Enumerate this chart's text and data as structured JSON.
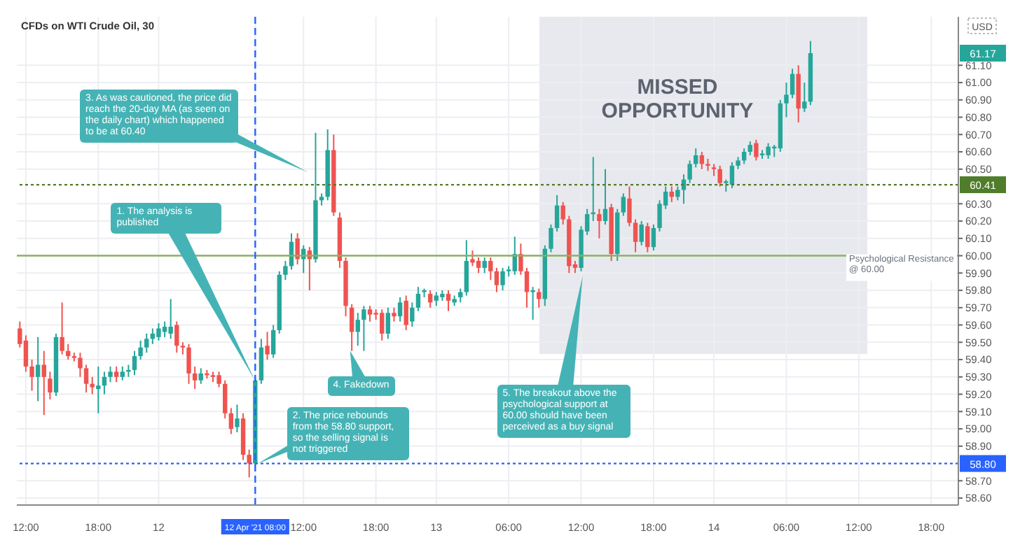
{
  "chart_data": {
    "type": "candlestick",
    "title": "CFDs on WTI Crude Oil, 30",
    "ylabel": "USD",
    "categories": [
      null,
      "12:00",
      null,
      null,
      null,
      null,
      null,
      null,
      null,
      null,
      null,
      null,
      null,
      "18:00",
      null,
      null,
      null,
      null,
      null,
      null,
      null,
      null,
      null,
      "12",
      null,
      null,
      null,
      null,
      null,
      null,
      null,
      null,
      null,
      null,
      null,
      null,
      null,
      null,
      null,
      "12 Apr '21 08:00",
      null,
      null,
      null,
      null,
      null,
      null,
      null,
      "12:00",
      null,
      null,
      null,
      null,
      null,
      null,
      null,
      null,
      null,
      null,
      null,
      "18:00",
      null,
      null,
      null,
      null,
      null,
      null,
      null,
      null,
      null,
      "13",
      null,
      null,
      null,
      null,
      null,
      null,
      null,
      null,
      null,
      null,
      null,
      "06:00",
      null,
      null,
      null,
      null,
      null,
      null,
      null,
      null,
      null,
      null,
      null,
      "12:00",
      null,
      null,
      null,
      null,
      null,
      null,
      null,
      null,
      null,
      null,
      null,
      "18:00",
      null,
      null,
      null,
      null,
      null,
      null,
      null,
      null,
      null,
      "14",
      null,
      null,
      null,
      null,
      null,
      null,
      null,
      null,
      null,
      null,
      null,
      "06:00",
      null,
      null,
      null,
      null,
      null,
      null,
      null,
      null,
      null,
      null,
      null,
      "12:00",
      null,
      null,
      null,
      null,
      null,
      null,
      null,
      null,
      null,
      null,
      null,
      "18:00",
      null,
      null,
      null,
      null
    ],
    "ohlc": [
      [
        59.58,
        59.62,
        59.47,
        59.49
      ],
      [
        59.51,
        59.54,
        59.33,
        59.36
      ],
      [
        59.36,
        59.4,
        59.22,
        59.3
      ],
      [
        59.3,
        59.53,
        59.16,
        59.37
      ],
      [
        59.37,
        59.45,
        59.08,
        59.3
      ],
      [
        59.29,
        59.33,
        59.17,
        59.21
      ],
      [
        59.21,
        59.55,
        59.19,
        59.53
      ],
      [
        59.53,
        59.73,
        59.43,
        59.45
      ],
      [
        59.45,
        59.49,
        59.4,
        59.42
      ],
      [
        59.42,
        59.44,
        59.39,
        59.41
      ],
      [
        59.41,
        59.44,
        59.3,
        59.35
      ],
      [
        59.35,
        59.37,
        59.21,
        59.26
      ],
      [
        59.26,
        59.3,
        59.2,
        59.24
      ],
      [
        59.23,
        59.36,
        59.09,
        59.25
      ],
      [
        59.25,
        59.33,
        59.2,
        59.3
      ],
      [
        59.3,
        59.36,
        59.27,
        59.33
      ],
      [
        59.33,
        59.36,
        59.27,
        59.3
      ],
      [
        59.3,
        59.36,
        59.28,
        59.33
      ],
      [
        59.33,
        59.37,
        59.3,
        59.34
      ],
      [
        59.34,
        59.45,
        59.31,
        59.42
      ],
      [
        59.42,
        59.51,
        59.4,
        59.47
      ],
      [
        59.47,
        59.55,
        59.44,
        59.52
      ],
      [
        59.52,
        59.58,
        59.49,
        59.55
      ],
      [
        59.53,
        59.61,
        59.51,
        59.58
      ],
      [
        59.56,
        59.62,
        59.53,
        59.59
      ],
      [
        59.55,
        59.75,
        59.52,
        59.59
      ],
      [
        59.6,
        59.62,
        59.44,
        59.48
      ],
      [
        59.48,
        59.5,
        59.43,
        59.47
      ],
      [
        59.47,
        59.49,
        59.26,
        59.32
      ],
      [
        59.32,
        59.36,
        59.23,
        59.28
      ],
      [
        59.28,
        59.35,
        59.26,
        59.32
      ],
      [
        59.32,
        59.34,
        59.29,
        59.31
      ],
      [
        59.31,
        59.33,
        59.27,
        59.3
      ],
      [
        59.31,
        59.33,
        59.24,
        59.26
      ],
      [
        59.26,
        59.28,
        59.06,
        59.09
      ],
      [
        59.09,
        59.12,
        58.97,
        59.0
      ],
      [
        59.01,
        59.14,
        58.98,
        59.06
      ],
      [
        59.06,
        59.09,
        58.82,
        58.85
      ],
      [
        58.85,
        58.88,
        58.72,
        58.8
      ],
      [
        58.8,
        59.29,
        58.79,
        59.28
      ],
      [
        59.28,
        59.52,
        59.26,
        59.47
      ],
      [
        59.48,
        59.56,
        59.4,
        59.43
      ],
      [
        59.43,
        59.6,
        59.41,
        59.57
      ],
      [
        59.57,
        59.91,
        59.55,
        59.89
      ],
      [
        59.89,
        59.97,
        59.86,
        59.94
      ],
      [
        59.94,
        60.13,
        59.92,
        60.08
      ],
      [
        60.1,
        60.13,
        59.95,
        59.98
      ],
      [
        59.98,
        60.06,
        59.9,
        60.04
      ],
      [
        60.03,
        60.05,
        59.8,
        59.98
      ],
      [
        59.98,
        60.71,
        59.96,
        60.32
      ],
      [
        60.32,
        60.36,
        60.29,
        60.34
      ],
      [
        60.34,
        60.73,
        60.32,
        60.61
      ],
      [
        60.61,
        60.7,
        60.23,
        60.25
      ],
      [
        60.22,
        60.25,
        59.93,
        59.97
      ],
      [
        59.97,
        59.99,
        59.65,
        59.71
      ],
      [
        59.7,
        59.72,
        59.45,
        59.56
      ],
      [
        59.56,
        59.67,
        59.48,
        59.63
      ],
      [
        59.63,
        59.71,
        59.45,
        59.69
      ],
      [
        59.69,
        59.71,
        59.62,
        59.66
      ],
      [
        59.67,
        59.69,
        59.63,
        59.66
      ],
      [
        59.67,
        59.69,
        59.51,
        59.55
      ],
      [
        59.55,
        59.7,
        59.52,
        59.67
      ],
      [
        59.67,
        59.7,
        59.62,
        59.65
      ],
      [
        59.65,
        59.76,
        59.62,
        59.73
      ],
      [
        59.74,
        59.77,
        59.57,
        59.6
      ],
      [
        59.62,
        59.73,
        59.59,
        59.7
      ],
      [
        59.7,
        59.82,
        59.68,
        59.78
      ],
      [
        59.79,
        59.81,
        59.76,
        59.8
      ],
      [
        59.78,
        59.8,
        59.7,
        59.73
      ],
      [
        59.74,
        59.79,
        59.71,
        59.77
      ],
      [
        59.76,
        59.8,
        59.74,
        59.78
      ],
      [
        59.78,
        59.8,
        59.68,
        59.74
      ],
      [
        59.73,
        59.77,
        59.71,
        59.75
      ],
      [
        59.76,
        59.81,
        59.73,
        59.79
      ],
      [
        59.79,
        60.09,
        59.77,
        59.97
      ],
      [
        59.98,
        60.03,
        59.94,
        59.96
      ],
      [
        59.97,
        59.99,
        59.9,
        59.93
      ],
      [
        59.93,
        59.99,
        59.9,
        59.97
      ],
      [
        59.97,
        59.99,
        59.86,
        59.91
      ],
      [
        59.91,
        59.93,
        59.79,
        59.83
      ],
      [
        59.83,
        59.93,
        59.8,
        59.91
      ],
      [
        59.91,
        59.94,
        59.88,
        59.92
      ],
      [
        59.91,
        60.11,
        59.89,
        60.01
      ],
      [
        60.01,
        60.07,
        59.89,
        59.91
      ],
      [
        59.91,
        59.93,
        59.7,
        59.79
      ],
      [
        59.79,
        59.82,
        59.63,
        59.8
      ],
      [
        59.79,
        59.81,
        59.7,
        59.75
      ],
      [
        59.75,
        60.06,
        59.71,
        60.04
      ],
      [
        60.04,
        60.18,
        60.02,
        60.16
      ],
      [
        60.16,
        60.35,
        60.14,
        60.29
      ],
      [
        60.29,
        60.31,
        60.18,
        60.21
      ],
      [
        60.21,
        60.23,
        59.9,
        59.94
      ],
      [
        59.95,
        59.97,
        59.9,
        59.93
      ],
      [
        59.93,
        60.17,
        59.91,
        60.15
      ],
      [
        60.14,
        60.27,
        60.12,
        60.24
      ],
      [
        60.24,
        60.57,
        60.2,
        60.25
      ],
      [
        60.24,
        60.27,
        60.1,
        60.2
      ],
      [
        60.2,
        60.5,
        60.18,
        60.27
      ],
      [
        60.28,
        60.3,
        59.97,
        60.01
      ],
      [
        60.01,
        60.27,
        59.97,
        60.25
      ],
      [
        60.25,
        60.36,
        60.23,
        60.34
      ],
      [
        60.33,
        60.4,
        60.17,
        60.19
      ],
      [
        60.19,
        60.21,
        60.02,
        60.08
      ],
      [
        60.08,
        60.2,
        60.06,
        60.18
      ],
      [
        60.17,
        60.19,
        60.02,
        60.05
      ],
      [
        60.05,
        60.18,
        60.03,
        60.16
      ],
      [
        60.16,
        60.32,
        60.14,
        60.3
      ],
      [
        60.29,
        60.4,
        60.27,
        60.37
      ],
      [
        60.37,
        60.4,
        60.31,
        60.34
      ],
      [
        60.34,
        60.4,
        60.32,
        60.38
      ],
      [
        60.38,
        60.47,
        60.3,
        60.44
      ],
      [
        60.44,
        60.55,
        60.42,
        60.53
      ],
      [
        60.53,
        60.62,
        60.51,
        60.58
      ],
      [
        60.58,
        60.6,
        60.5,
        60.53
      ],
      [
        60.53,
        60.56,
        60.49,
        60.52
      ],
      [
        60.51,
        60.53,
        60.46,
        60.5
      ],
      [
        60.5,
        60.52,
        60.4,
        60.42
      ],
      [
        60.42,
        60.44,
        60.37,
        60.43
      ],
      [
        60.41,
        60.54,
        60.39,
        60.52
      ],
      [
        60.52,
        60.57,
        60.5,
        60.55
      ],
      [
        60.55,
        60.62,
        60.53,
        60.6
      ],
      [
        60.6,
        60.66,
        60.58,
        60.64
      ],
      [
        60.65,
        60.67,
        60.55,
        60.57
      ],
      [
        60.58,
        60.61,
        60.56,
        60.59
      ],
      [
        60.58,
        60.65,
        60.56,
        60.63
      ],
      [
        60.62,
        60.64,
        60.57,
        60.63
      ],
      [
        60.62,
        60.9,
        60.6,
        60.88
      ],
      [
        60.88,
        61.0,
        60.8,
        60.93
      ],
      [
        60.93,
        61.08,
        60.91,
        61.05
      ],
      [
        61.05,
        61.1,
        60.77,
        60.85
      ],
      [
        60.85,
        61.0,
        60.83,
        60.89
      ],
      [
        60.89,
        61.24,
        60.87,
        61.17
      ],
      null,
      null,
      null,
      null,
      null,
      null,
      null,
      null,
      null,
      null,
      null,
      null,
      null,
      null,
      null,
      null,
      null,
      null,
      null,
      null,
      null,
      null,
      null,
      null
    ],
    "colors": [
      "#ef5350",
      "#ef5350",
      "#ef5350",
      "#26a69a",
      "#ef5350",
      "#ef5350",
      "#26a69a",
      "#ef5350",
      "#ef5350",
      "#ef5350",
      "#ef5350",
      "#ef5350",
      "#ef5350",
      "#26a69a",
      "#26a69a",
      "#26a69a",
      "#ef5350",
      "#26a69a",
      "#26a69a",
      "#26a69a",
      "#26a69a",
      "#26a69a",
      "#26a69a",
      "#26a69a",
      "#26a69a",
      "#26a69a",
      "#ef5350",
      "#ef5350",
      "#ef5350",
      "#ef5350",
      "#26a69a",
      "#ef5350",
      "#ef5350",
      "#ef5350",
      "#ef5350",
      "#ef5350",
      "#26a69a",
      "#ef5350",
      "#ef5350",
      "#26a69a",
      "#26a69a",
      "#ef5350",
      "#26a69a",
      "#26a69a",
      "#26a69a",
      "#26a69a",
      "#ef5350",
      "#26a69a",
      "#ef5350",
      "#26a69a",
      "#26a69a",
      "#26a69a",
      "#ef5350",
      "#ef5350",
      "#ef5350",
      "#ef5350",
      "#26a69a",
      "#26a69a",
      "#ef5350",
      "#ef5350",
      "#ef5350",
      "#26a69a",
      "#ef5350",
      "#26a69a",
      "#ef5350",
      "#26a69a",
      "#26a69a",
      "#26a69a",
      "#ef5350",
      "#26a69a",
      "#26a69a",
      "#ef5350",
      "#26a69a",
      "#26a69a",
      "#26a69a",
      "#ef5350",
      "#ef5350",
      "#26a69a",
      "#ef5350",
      "#ef5350",
      "#26a69a",
      "#26a69a",
      "#26a69a",
      "#ef5350",
      "#ef5350",
      "#26a69a",
      "#ef5350",
      "#26a69a",
      "#26a69a",
      "#26a69a",
      "#ef5350",
      "#ef5350",
      "#ef5350",
      "#26a69a",
      "#26a69a",
      "#26a69a",
      "#ef5350",
      "#26a69a",
      "#ef5350",
      "#26a69a",
      "#26a69a",
      "#ef5350",
      "#ef5350",
      "#26a69a",
      "#ef5350",
      "#26a69a",
      "#26a69a",
      "#26a69a",
      "#ef5350",
      "#26a69a",
      "#26a69a",
      "#26a69a",
      "#26a69a",
      "#ef5350",
      "#ef5350",
      "#ef5350",
      "#ef5350",
      "#26a69a",
      "#26a69a",
      "#26a69a",
      "#26a69a",
      "#26a69a",
      "#ef5350",
      "#26a69a",
      "#26a69a",
      "#26a69a",
      "#26a69a",
      "#26a69a",
      "#26a69a",
      "#ef5350",
      "#26a69a",
      "#26a69a",
      null,
      null,
      null,
      null,
      null,
      null,
      null,
      null,
      null,
      null,
      null,
      null,
      null,
      null,
      null,
      null,
      null,
      null,
      null,
      null,
      null,
      null,
      null,
      null
    ],
    "ylim": [
      58.56,
      61.38
    ],
    "yticks": [
      {
        "value": 58.6,
        "label": "58.60"
      },
      {
        "value": 58.7,
        "label": "58.70"
      },
      {
        "value": 58.9,
        "label": "58.90"
      },
      {
        "value": 59,
        "label": "59.00"
      },
      {
        "value": 59.1,
        "label": "59.10"
      },
      {
        "value": 59.2,
        "label": "59.20"
      },
      {
        "value": 59.3,
        "label": "59.30"
      },
      {
        "value": 59.4,
        "label": "59.40"
      },
      {
        "value": 59.5,
        "label": "59.50"
      },
      {
        "value": 59.6,
        "label": "59.60"
      },
      {
        "value": 59.7,
        "label": "59.70"
      },
      {
        "value": 59.8,
        "label": "59.80"
      },
      {
        "value": 59.9,
        "label": "59.90"
      },
      {
        "value": 60,
        "label": "60.00"
      },
      {
        "value": 60.1,
        "label": "60.10"
      },
      {
        "value": 60.2,
        "label": "60.20"
      },
      {
        "value": 60.3,
        "label": "60.30"
      },
      {
        "value": 60.5,
        "label": "60.50"
      },
      {
        "value": 60.6,
        "label": "60.60"
      },
      {
        "value": 60.7,
        "label": "60.70"
      },
      {
        "value": 60.8,
        "label": "60.80"
      },
      {
        "value": 60.9,
        "label": "60.90"
      },
      {
        "value": 61,
        "label": "61.00"
      },
      {
        "value": 61.1,
        "label": "61.10"
      }
    ],
    "grid": true,
    "ref_lines": [
      {
        "axis": "y",
        "value": 60,
        "label": "Psychological Resistance @ 60.00",
        "color": "#8bb062",
        "line_style": "solid"
      },
      {
        "axis": "y",
        "value": 60.41,
        "label": "60.41",
        "color": "#4f7d2a",
        "line_style": "dotted"
      },
      {
        "axis": "y",
        "value": 58.8,
        "label": "58.80",
        "color": "#2962ff",
        "line_style": "dotted"
      },
      {
        "axis": "x",
        "value": "12 Apr '21 08:00",
        "label": null,
        "color": "#2962ff",
        "line_style": "dashed"
      }
    ],
    "annotations": [
      "1. The analysis is published",
      "2. The price rebounds from the 58.80 support, so the selling signal is not triggered",
      "3. As was cautioned, the price did reach the 20-day MA (as seen on the daily chart) which happened to be at 60.40",
      "4. Fakedown",
      "5. The breakout above the psychological support at 60.00 should have been perceived as a buy signal",
      "MISSED OPPORTUNITY",
      {
        "text": "61.17",
        "y": 61.17
      }
    ]
  }
}
